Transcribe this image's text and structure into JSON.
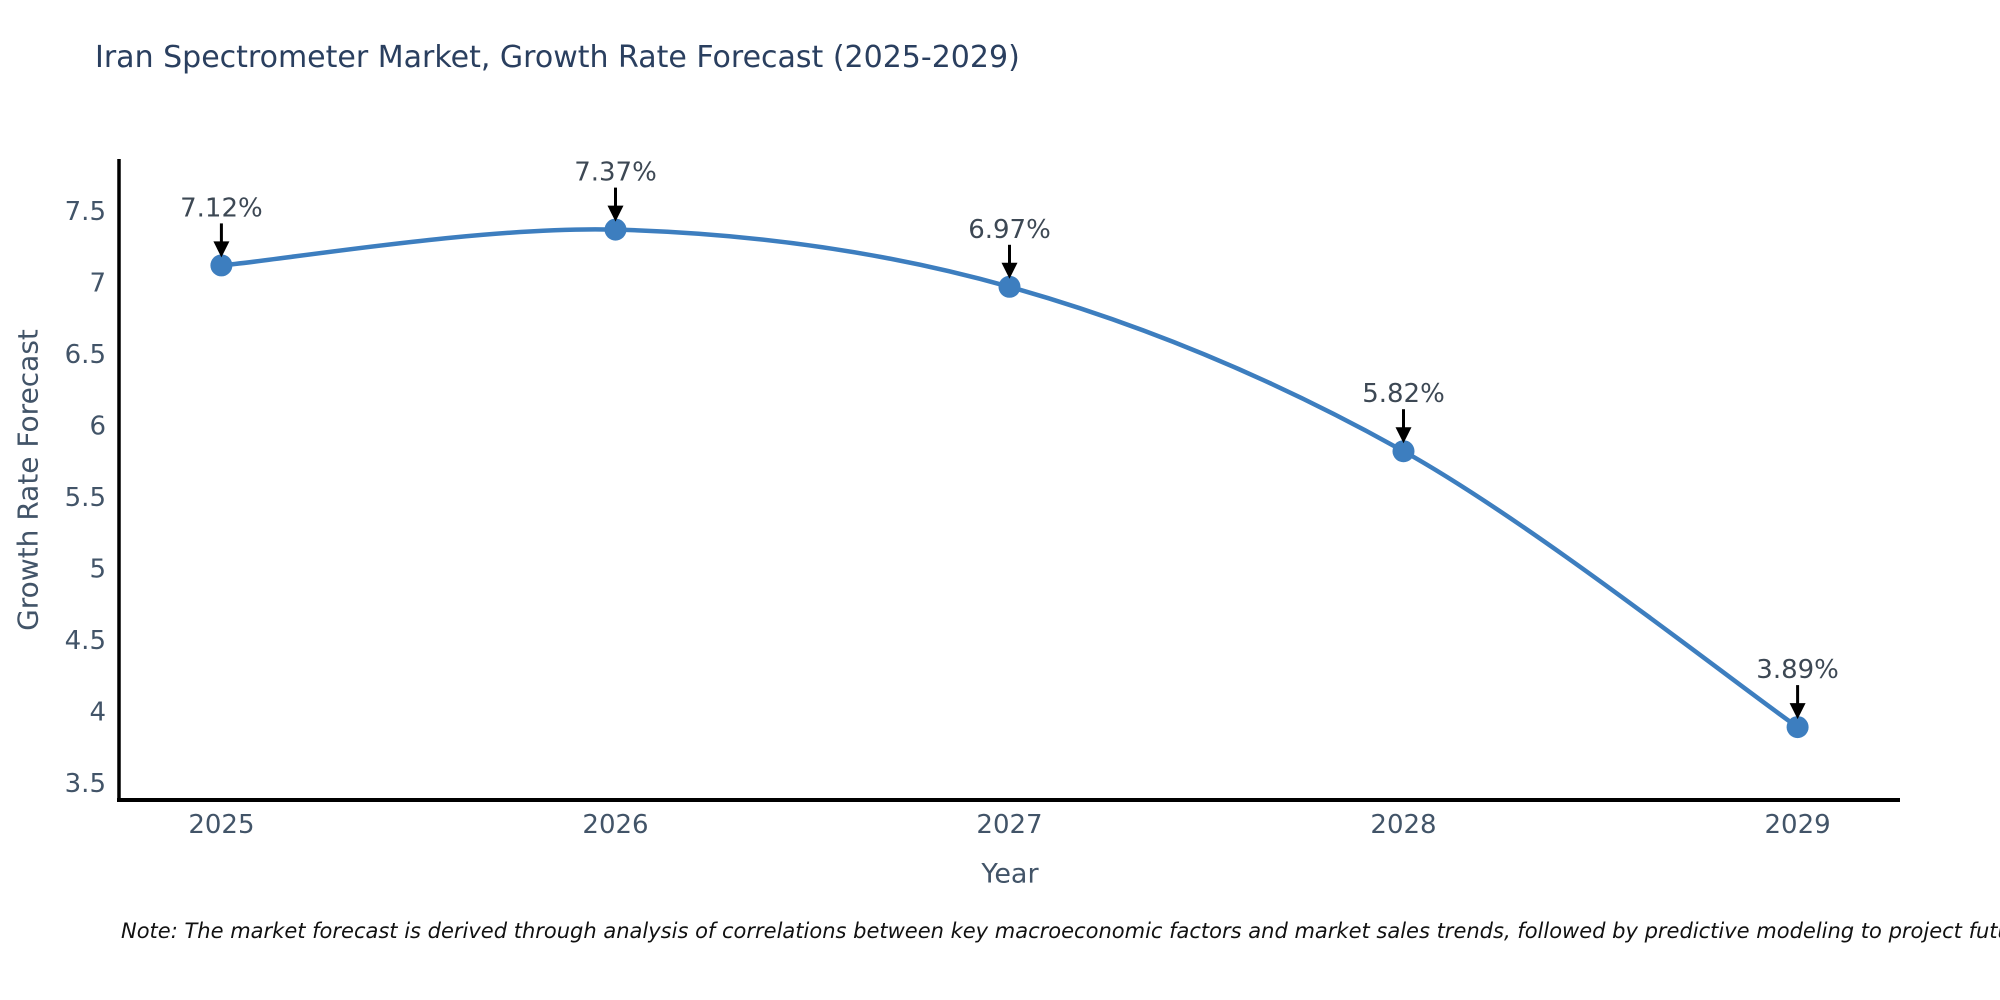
{
  "title": "Iran Spectrometer Market, Growth Rate Forecast (2025-2029)",
  "note": "Note: The market forecast is derived through analysis of correlations between key macroeconomic factors and market sales trends, followed by predictive modeling to project future sales",
  "chart_data": {
    "type": "line",
    "title": "Iran Spectrometer Market, Growth Rate Forecast (2025-2029)",
    "xlabel": "Year",
    "ylabel": "Growth Rate Forecast",
    "x": [
      2025,
      2026,
      2027,
      2028,
      2029
    ],
    "values": [
      7.12,
      7.37,
      6.97,
      5.82,
      3.89
    ],
    "point_labels": [
      "7.12%",
      "7.37%",
      "6.97%",
      "5.82%",
      "3.89%"
    ],
    "x_ticks": [
      2025,
      2026,
      2027,
      2028,
      2029
    ],
    "y_ticks": [
      3.5,
      4,
      4.5,
      5,
      5.5,
      6,
      6.5,
      7,
      7.5
    ],
    "xlim": [
      2024.74,
      2029.26
    ],
    "ylim": [
      3.38,
      7.85
    ],
    "grid": false,
    "legend_position": "none",
    "annotations_have_arrows": true,
    "colors": {
      "line": "#3d7ebf",
      "marker": "#3d7ebf",
      "arrow": "#000000",
      "spine": "#000000",
      "title_text": "#2a3f5f",
      "axis_text": "#425468",
      "annotation_text": "#3d4854",
      "note_text": "#111111",
      "background": "#ffffff"
    }
  }
}
